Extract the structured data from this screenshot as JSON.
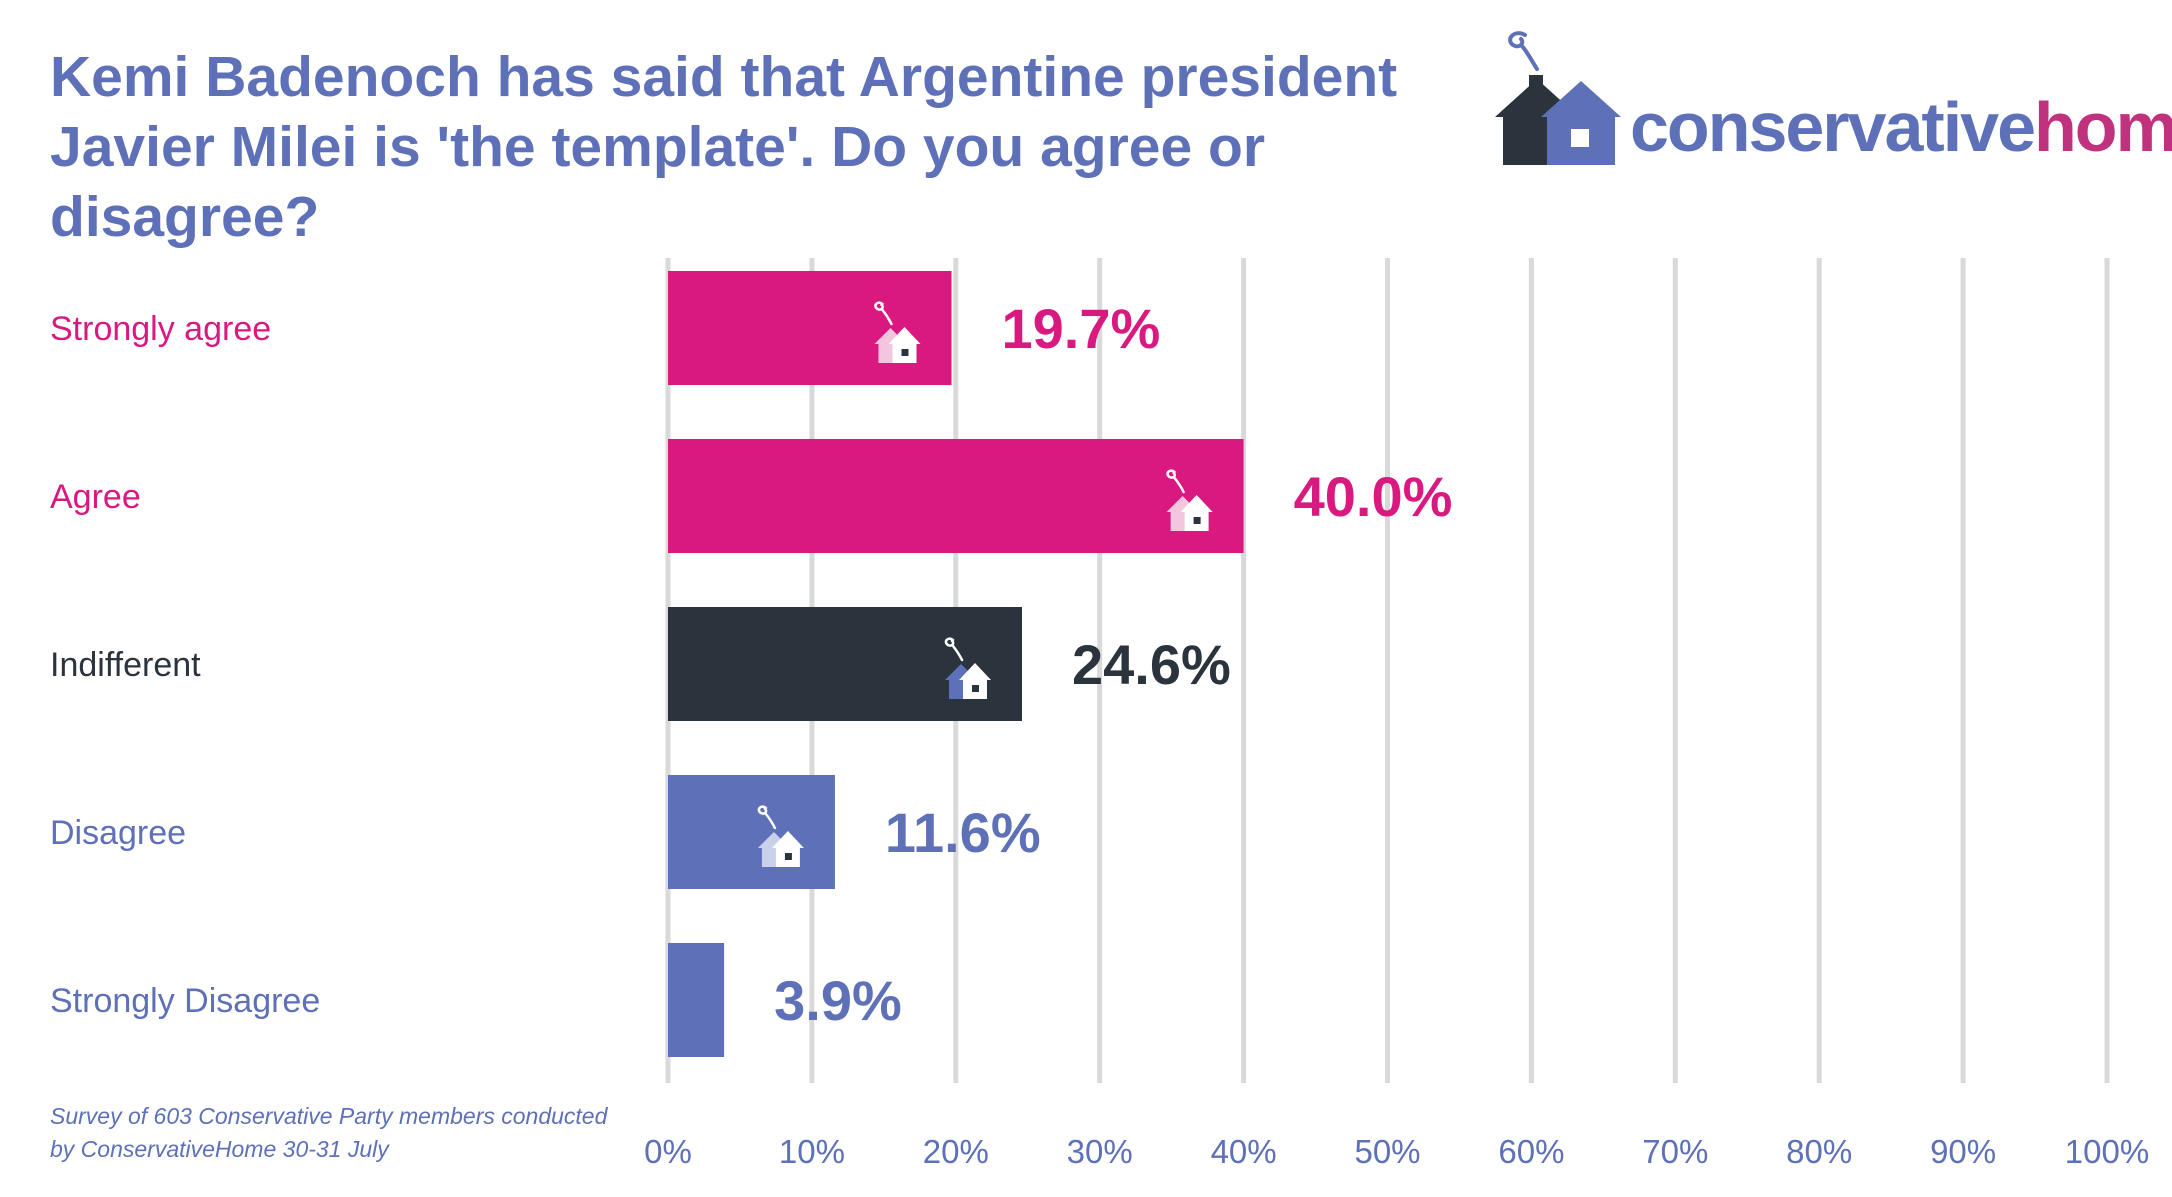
{
  "title": "Kemi Badenoch has said that Argentine president Javier Milei is 'the template'. Do you agree or disagree?",
  "logo": {
    "part1": "conservative",
    "part2": "home"
  },
  "footnote": "Survey of 603 Conservative Party members conducted by ConservativeHome 30-31 July",
  "colors": {
    "magenta": "#d9197f",
    "dark": "#2b343d",
    "blue": "#5d70b8",
    "grid": "#d9d9d9",
    "logo_home": "#c0317e"
  },
  "chart_data": {
    "type": "bar",
    "orientation": "horizontal",
    "categories": [
      "Strongly agree",
      "Agree",
      "Indifferent",
      "Disagree",
      "Strongly Disagree"
    ],
    "values": [
      19.7,
      40.0,
      24.6,
      11.6,
      3.9
    ],
    "value_labels": [
      "19.7%",
      "40.0%",
      "24.6%",
      "11.6%",
      "3.9%"
    ],
    "bar_colors": [
      "#d9197f",
      "#d9197f",
      "#2b343d",
      "#5d70b8",
      "#5d70b8"
    ],
    "xlim": [
      0,
      100
    ],
    "xticks": [
      0,
      10,
      20,
      30,
      40,
      50,
      60,
      70,
      80,
      90,
      100
    ],
    "xtick_labels": [
      "0%",
      "10%",
      "20%",
      "30%",
      "40%",
      "50%",
      "60%",
      "70%",
      "80%",
      "90%",
      "100%"
    ],
    "grid": true,
    "xlabel": "",
    "ylabel": ""
  }
}
